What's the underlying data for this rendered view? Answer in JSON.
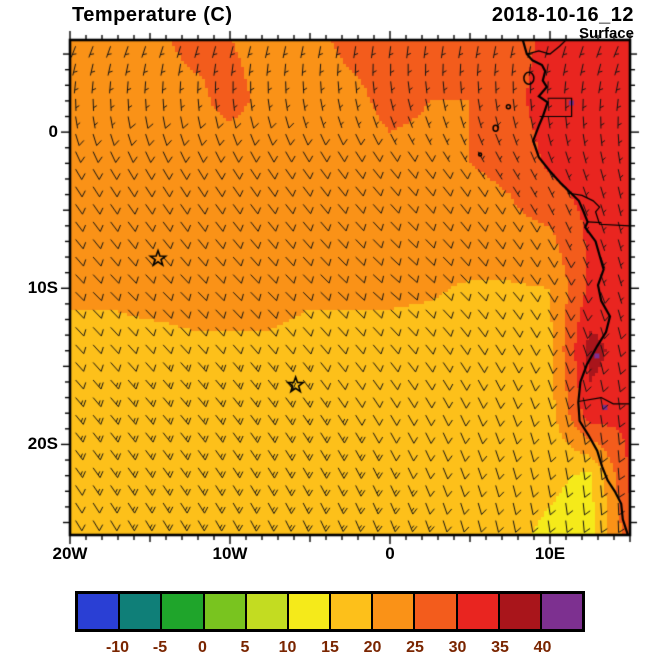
{
  "header": {
    "title": "Temperature (C)",
    "datetime": "2018-10-16_12",
    "level": "Surface"
  },
  "axes": {
    "x_ticks": [
      {
        "label": "20W",
        "lon": -20
      },
      {
        "label": "10W",
        "lon": -10
      },
      {
        "label": "0",
        "lon": 0
      },
      {
        "label": "10E",
        "lon": 10
      }
    ],
    "y_ticks": [
      {
        "label": "0",
        "lat": 0
      },
      {
        "label": "10S",
        "lat": -10
      },
      {
        "label": "20S",
        "lat": -20
      }
    ]
  },
  "colorbar": {
    "values": [
      -10,
      -5,
      0,
      5,
      10,
      15,
      20,
      25,
      30,
      35,
      40
    ],
    "colors": [
      "#2a3fd4",
      "#0f7f78",
      "#1fa52b",
      "#79c41f",
      "#c3dc21",
      "#f5ea1a",
      "#fdc01a",
      "#fa9217",
      "#f35c1c",
      "#e92520",
      "#a9151b",
      "#7d3090"
    ],
    "label_color": "#7a2500"
  },
  "chart_data": {
    "type": "heatmap",
    "title": "Temperature (C)",
    "field": "surface_temperature",
    "units": "C",
    "valid_time": "2018-10-16_12",
    "level": "Surface",
    "domain": {
      "lon_min": -20,
      "lon_max": 15,
      "lat_min": -25.8,
      "lat_max": 5.9
    },
    "temperature_grid": {
      "lons": [
        -20,
        -17.5,
        -15,
        -12.5,
        -10,
        -7.5,
        -5,
        -2.5,
        0,
        2.5,
        5,
        7.5,
        10,
        12.5,
        15
      ],
      "lats": [
        6,
        2,
        -2,
        -6,
        -10,
        -14,
        -18,
        -22,
        -26
      ],
      "values": [
        [
          23,
          23,
          24,
          26,
          25,
          24,
          24,
          26,
          26,
          25,
          26,
          28,
          31,
          33,
          32
        ],
        [
          23,
          23,
          23,
          24,
          26,
          24,
          23,
          24,
          26,
          25,
          25,
          28,
          33,
          35,
          33
        ],
        [
          22,
          23,
          23,
          23,
          23,
          23,
          23,
          23,
          24,
          24,
          25,
          26,
          31,
          33,
          34
        ],
        [
          21,
          22,
          23,
          23,
          23,
          23,
          23,
          23,
          23,
          23,
          23,
          24,
          25,
          31,
          33
        ],
        [
          21,
          21,
          22,
          22,
          22,
          22,
          21,
          21,
          21,
          20.5,
          19.5,
          19.5,
          20,
          31,
          33
        ],
        [
          18,
          18,
          18,
          19,
          19,
          19,
          18,
          18,
          18,
          18,
          18,
          18,
          19,
          37,
          32
        ],
        [
          18,
          18,
          18,
          18,
          18,
          18,
          18,
          18,
          18,
          18,
          18,
          18,
          18,
          33,
          31
        ],
        [
          18,
          18,
          18,
          18,
          18,
          18,
          18,
          18,
          18,
          17,
          17,
          17,
          16,
          14,
          31
        ],
        [
          17,
          17,
          18,
          18,
          18,
          18,
          18,
          18,
          17,
          17,
          17,
          16,
          14,
          13,
          28
        ]
      ]
    },
    "wind_barbs": {
      "lons": [
        -20,
        -13,
        -6,
        1,
        8,
        15
      ],
      "lats": [
        6,
        -2,
        -10,
        -18,
        -26
      ],
      "dir_from_deg": [
        [
          205,
          200,
          195,
          190,
          195,
          205
        ],
        [
          150,
          150,
          145,
          140,
          150,
          170
        ],
        [
          135,
          135,
          135,
          130,
          140,
          165
        ],
        [
          140,
          140,
          145,
          150,
          160,
          175
        ],
        [
          150,
          150,
          155,
          160,
          170,
          180
        ]
      ],
      "speed_kt": [
        [
          6,
          6,
          5,
          5,
          5,
          4
        ],
        [
          8,
          9,
          9,
          8,
          7,
          5
        ],
        [
          11,
          12,
          12,
          11,
          9,
          7
        ],
        [
          13,
          13,
          13,
          12,
          10,
          8
        ],
        [
          12,
          13,
          13,
          13,
          11,
          9
        ]
      ],
      "spacing_deg": {
        "lon": 1.094,
        "lat": 1.125
      }
    },
    "markers": [
      {
        "type": "star",
        "lon": -14.5,
        "lat": -8.1
      },
      {
        "type": "star",
        "lon": -5.9,
        "lat": -16.2
      }
    ],
    "hot_spots": [
      {
        "lon": 12.9,
        "lat": -14.3
      },
      {
        "lon": 13.4,
        "lat": -17.6
      },
      {
        "lon": 11.3,
        "lat": 1.9
      }
    ],
    "coastline": [
      [
        8.3,
        5.9
      ],
      [
        8.55,
        5.0
      ],
      [
        8.9,
        4.6
      ],
      [
        9.5,
        4.3
      ],
      [
        9.7,
        3.9
      ],
      [
        9.55,
        3.3
      ],
      [
        9.8,
        2.9
      ],
      [
        9.3,
        2.3
      ],
      [
        9.85,
        1.9
      ],
      [
        9.55,
        1.0
      ],
      [
        9.3,
        0.4
      ],
      [
        8.95,
        -0.55
      ],
      [
        9.3,
        -1.6
      ],
      [
        10.0,
        -2.5
      ],
      [
        10.7,
        -3.3
      ],
      [
        11.8,
        -4.4
      ],
      [
        12.1,
        -5.1
      ],
      [
        12.35,
        -5.75
      ],
      [
        12.2,
        -6.1
      ],
      [
        12.85,
        -7.0
      ],
      [
        13.1,
        -7.9
      ],
      [
        13.35,
        -8.8
      ],
      [
        13.0,
        -9.8
      ],
      [
        13.2,
        -10.8
      ],
      [
        13.75,
        -11.8
      ],
      [
        13.5,
        -12.8
      ],
      [
        12.95,
        -13.7
      ],
      [
        12.3,
        -14.9
      ],
      [
        11.9,
        -16.0
      ],
      [
        11.77,
        -17.3
      ],
      [
        11.85,
        -18.5
      ],
      [
        12.4,
        -19.4
      ],
      [
        12.95,
        -20.4
      ],
      [
        13.25,
        -21.4
      ],
      [
        13.6,
        -22.3
      ],
      [
        14.05,
        -23.0
      ],
      [
        14.45,
        -23.8
      ],
      [
        14.55,
        -24.8
      ],
      [
        14.9,
        -25.9
      ]
    ],
    "borders": [
      [
        [
          9.85,
          2.17
        ],
        [
          11.35,
          2.17
        ],
        [
          11.35,
          1.0
        ],
        [
          9.35,
          1.0
        ]
      ],
      [
        [
          11.1,
          -3.9
        ],
        [
          12.0,
          -4.05
        ],
        [
          12.7,
          -4.4
        ],
        [
          13.1,
          -4.8
        ],
        [
          12.85,
          -5.1
        ],
        [
          13.1,
          -5.9
        ],
        [
          15,
          -6.0
        ]
      ],
      [
        [
          12.35,
          -5.75
        ],
        [
          13.2,
          -5.8
        ]
      ],
      [
        [
          11.77,
          -17.25
        ],
        [
          13.2,
          -17.0
        ],
        [
          13.95,
          -17.4
        ],
        [
          15,
          -17.4
        ]
      ],
      [
        [
          8.55,
          5.0
        ],
        [
          9.3,
          5.2
        ],
        [
          10.0,
          5.0
        ],
        [
          10.6,
          5.5
        ],
        [
          11.0,
          5.9
        ]
      ]
    ],
    "islands": [
      {
        "lon": 8.68,
        "lat": 3.45,
        "rx": 5,
        "ry": 6
      },
      {
        "lon": 7.4,
        "lat": 1.62,
        "rx": 2,
        "ry": 2
      },
      {
        "lon": 6.6,
        "lat": 0.25,
        "rx": 2.5,
        "ry": 3
      },
      {
        "lon": 5.63,
        "lat": -1.43,
        "rx": 1.5,
        "ry": 1.5
      }
    ]
  }
}
